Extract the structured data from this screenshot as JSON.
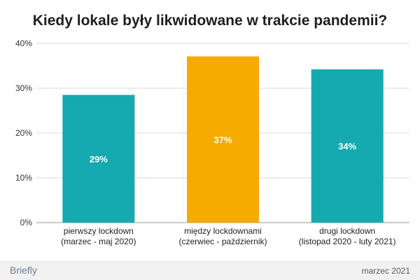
{
  "footer": {
    "brand": "Briefly",
    "date": "marzec 2021"
  },
  "chart_data": {
    "type": "bar",
    "title": "Kiedy lokale były likwidowane w trakcie pandemii?",
    "xlabel": "",
    "ylabel": "",
    "categories": [
      [
        "pierwszy lockdown",
        "(marzec - maj 2020)"
      ],
      [
        "między lockdownami",
        "(czerwiec - październik)"
      ],
      [
        "drugi lockdown",
        "(listopad 2020 - luty 2021)"
      ]
    ],
    "values": [
      28.5,
      37.1,
      34.2
    ],
    "data_labels": [
      "29%",
      "37%",
      "34%"
    ],
    "colors": [
      "#15a9b0",
      "#f5ab00",
      "#15a9b0"
    ],
    "ylim": [
      0,
      40
    ],
    "yticks": [
      0,
      10,
      20,
      30,
      40
    ],
    "ytick_labels": [
      "0%",
      "10%",
      "20%",
      "30%",
      "40%"
    ],
    "grid": true,
    "legend": "none"
  }
}
